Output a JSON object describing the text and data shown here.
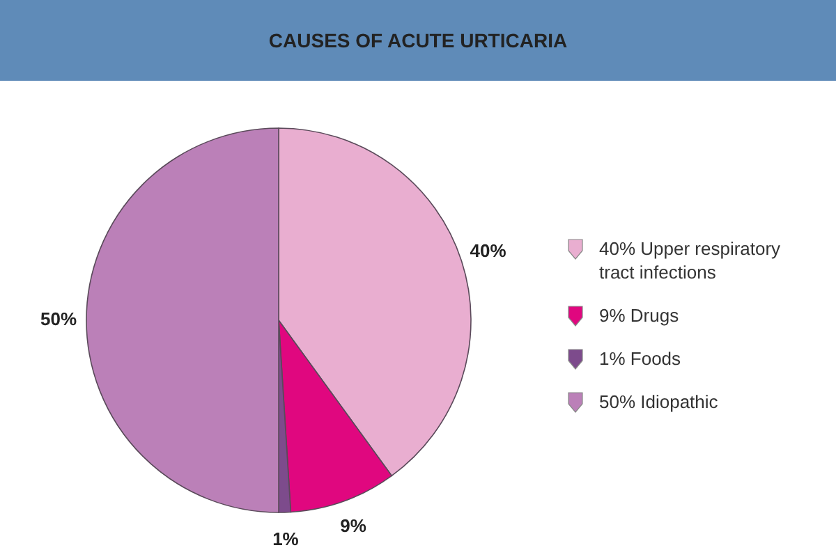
{
  "chart_data": {
    "type": "pie",
    "title": "CAUSES OF ACUTE URTICARIA",
    "categories": [
      "Upper respiratory tract infections",
      "Drugs",
      "Foods",
      "Idiopathic"
    ],
    "values": [
      40,
      9,
      1,
      50
    ],
    "value_labels": [
      "40%",
      "9%",
      "1%",
      "50%"
    ],
    "colors": [
      "#e9aed0",
      "#e0077f",
      "#7d4b8c",
      "#bb80b8"
    ],
    "legend": "right"
  }
}
